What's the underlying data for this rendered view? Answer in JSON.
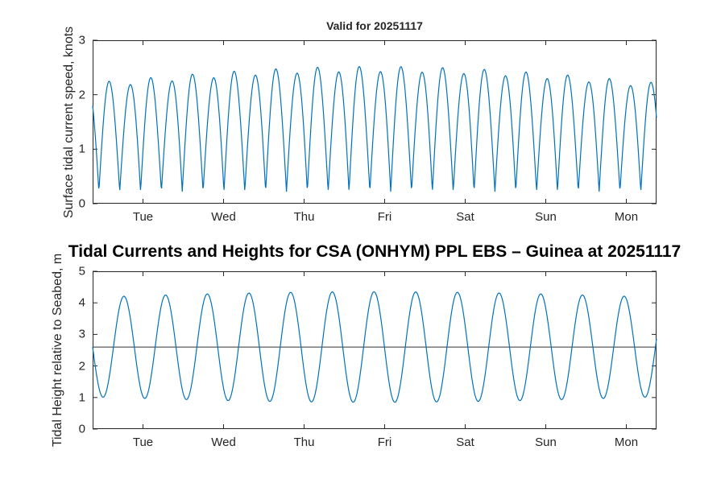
{
  "figure": {
    "main_title": "Tidal Currents and Heights for CSA (ONHYM) PPL EBS  – Guinea at 20251117",
    "background": "#ffffff",
    "axis_color": "#262626",
    "line_color": "#0072BD"
  },
  "chart_data": [
    {
      "id": "surface-current-speed",
      "type": "line",
      "title": "Valid for 20251117",
      "ylabel": "Surface tidal current speed, knots",
      "xlabel": "",
      "ylim": [
        0,
        3
      ],
      "yticks": [
        0,
        1,
        2,
        3
      ],
      "xlim_hours": [
        0,
        168
      ],
      "xtick_hours": [
        15,
        39,
        63,
        87,
        111,
        135,
        159
      ],
      "xtick_labels": [
        "Tue",
        "Wed",
        "Thu",
        "Fri",
        "Sat",
        "Sun",
        "Mon"
      ],
      "line_color": "#0072BD",
      "grid": false,
      "model": {
        "kind": "rectified_sine",
        "base": 0.22,
        "amp": 1.95,
        "amp_mod": 0.3,
        "amp_mod_peak": 84,
        "amp_mod_period": 336,
        "ineq": 0.08,
        "phase_hours": 4.35,
        "period_hours": 12.42
      },
      "observed": {
        "min": 0.2,
        "max": 2.5,
        "typical_peak_range": [
          1.9,
          2.5
        ],
        "peaks_per_day": 4,
        "duration_days": 7
      }
    },
    {
      "id": "tidal-height",
      "type": "line",
      "title": "",
      "ylabel": "Tidal Height relative to Seabed, m",
      "xlabel": "",
      "ylim": [
        0,
        5
      ],
      "yticks": [
        0,
        1,
        2,
        3,
        4,
        5
      ],
      "xlim_hours": [
        0,
        168
      ],
      "xtick_hours": [
        15,
        39,
        63,
        87,
        111,
        135,
        159
      ],
      "xtick_labels": [
        "Tue",
        "Wed",
        "Thu",
        "Fri",
        "Sat",
        "Sun",
        "Mon"
      ],
      "line_color": "#0072BD",
      "grid": false,
      "mean_line": 2.6,
      "mean_line_color": "#333333",
      "model": {
        "kind": "sine",
        "mean": 2.6,
        "amp": 1.58,
        "amp_mod": 0.17,
        "amp_mod_peak": 84,
        "amp_mod_period": 336,
        "phase_hours": 6.21,
        "period_hours": 12.42
      },
      "observed": {
        "min": 0.9,
        "max": 4.35,
        "typical_peak_range": [
          4.1,
          4.35
        ],
        "peaks_per_day": 1.93,
        "duration_days": 7
      }
    }
  ]
}
